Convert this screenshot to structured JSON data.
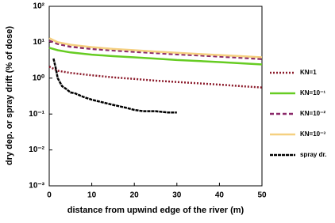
{
  "chart_data": {
    "type": "line",
    "xlabel": "distance from upwind edge of the river (m)",
    "ylabel": "dry dep. or spray drift (% of dose)",
    "log_y": true,
    "xlim": [
      0,
      50
    ],
    "xticks": [
      0,
      10,
      20,
      30,
      40,
      50
    ],
    "ylim": [
      0.001,
      100
    ],
    "yticks": [
      {
        "value": 0.001,
        "label": "10⁻³"
      },
      {
        "value": 0.01,
        "label": "10⁻²"
      },
      {
        "value": 0.1,
        "label": "10⁻¹"
      },
      {
        "value": 1,
        "label": "10⁰"
      },
      {
        "value": 10,
        "label": "10¹"
      },
      {
        "value": 100,
        "label": "10²"
      }
    ],
    "series": [
      {
        "name": "KN=1",
        "color": "#8b1a2a",
        "dash": "2,2",
        "x": [
          0,
          2,
          5,
          10,
          15,
          20,
          25,
          30,
          35,
          40,
          45,
          50
        ],
        "values": [
          2.1,
          1.6,
          1.4,
          1.2,
          1.05,
          0.95,
          0.85,
          0.78,
          0.72,
          0.66,
          0.6,
          0.55
        ]
      },
      {
        "name": "KN=10⁻¹",
        "color": "#66cc22",
        "dash": "",
        "x": [
          0,
          2,
          5,
          10,
          15,
          20,
          25,
          30,
          35,
          40,
          45,
          50
        ],
        "values": [
          7,
          6,
          5.2,
          4.5,
          4.1,
          3.8,
          3.5,
          3.2,
          3.0,
          2.8,
          2.6,
          2.4
        ]
      },
      {
        "name": "KN=10⁻²",
        "color": "#8b2a6a",
        "dash": "5,3",
        "x": [
          0,
          2,
          5,
          10,
          15,
          20,
          25,
          30,
          35,
          40,
          45,
          50
        ],
        "values": [
          11,
          9,
          7.5,
          6.5,
          5.9,
          5.4,
          5,
          4.6,
          4.3,
          4,
          3.7,
          3.4
        ]
      },
      {
        "name": "KN=10⁻³",
        "color": "#f5d080",
        "dash": "",
        "x": [
          0,
          2,
          5,
          10,
          15,
          20,
          25,
          30,
          35,
          40,
          45,
          50
        ],
        "values": [
          13,
          10,
          8.5,
          7.3,
          6.5,
          6,
          5.5,
          5.1,
          4.7,
          4.4,
          4.1,
          3.8
        ]
      },
      {
        "name": "spray dr.",
        "color": "#000000",
        "dash": "4,1",
        "x": [
          1,
          1.5,
          2,
          3,
          4,
          5,
          6,
          8,
          10,
          12,
          15,
          18,
          20,
          22,
          25,
          28,
          30
        ],
        "values": [
          3.5,
          2,
          1,
          0.6,
          0.5,
          0.4,
          0.38,
          0.3,
          0.25,
          0.22,
          0.18,
          0.15,
          0.13,
          0.12,
          0.12,
          0.11,
          0.11
        ]
      }
    ]
  }
}
